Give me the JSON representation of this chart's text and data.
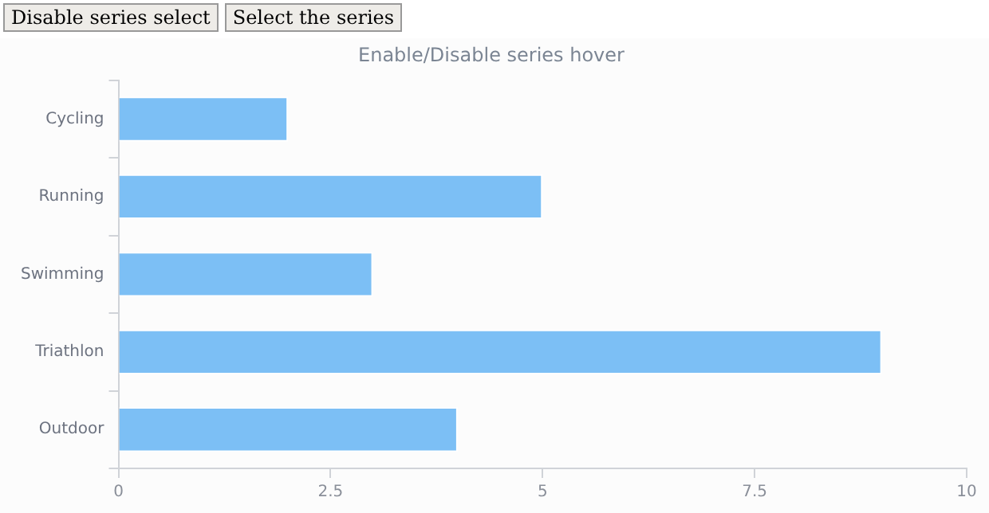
{
  "chart_data": {
    "type": "bar",
    "orientation": "horizontal",
    "title": "Enable/Disable series hover",
    "categories": [
      "Cycling",
      "Running",
      "Swimming",
      "Triathlon",
      "Outdoor"
    ],
    "series": [
      {
        "color": "#7cbff5",
        "values": [
          2,
          5,
          3,
          9,
          4
        ]
      }
    ],
    "xlim": [
      0,
      10
    ],
    "xticks": [
      0,
      2.5,
      5,
      7.5,
      10
    ],
    "grid": false,
    "legend": false,
    "annotations": [
      "Disable series select",
      "Select the series"
    ]
  }
}
